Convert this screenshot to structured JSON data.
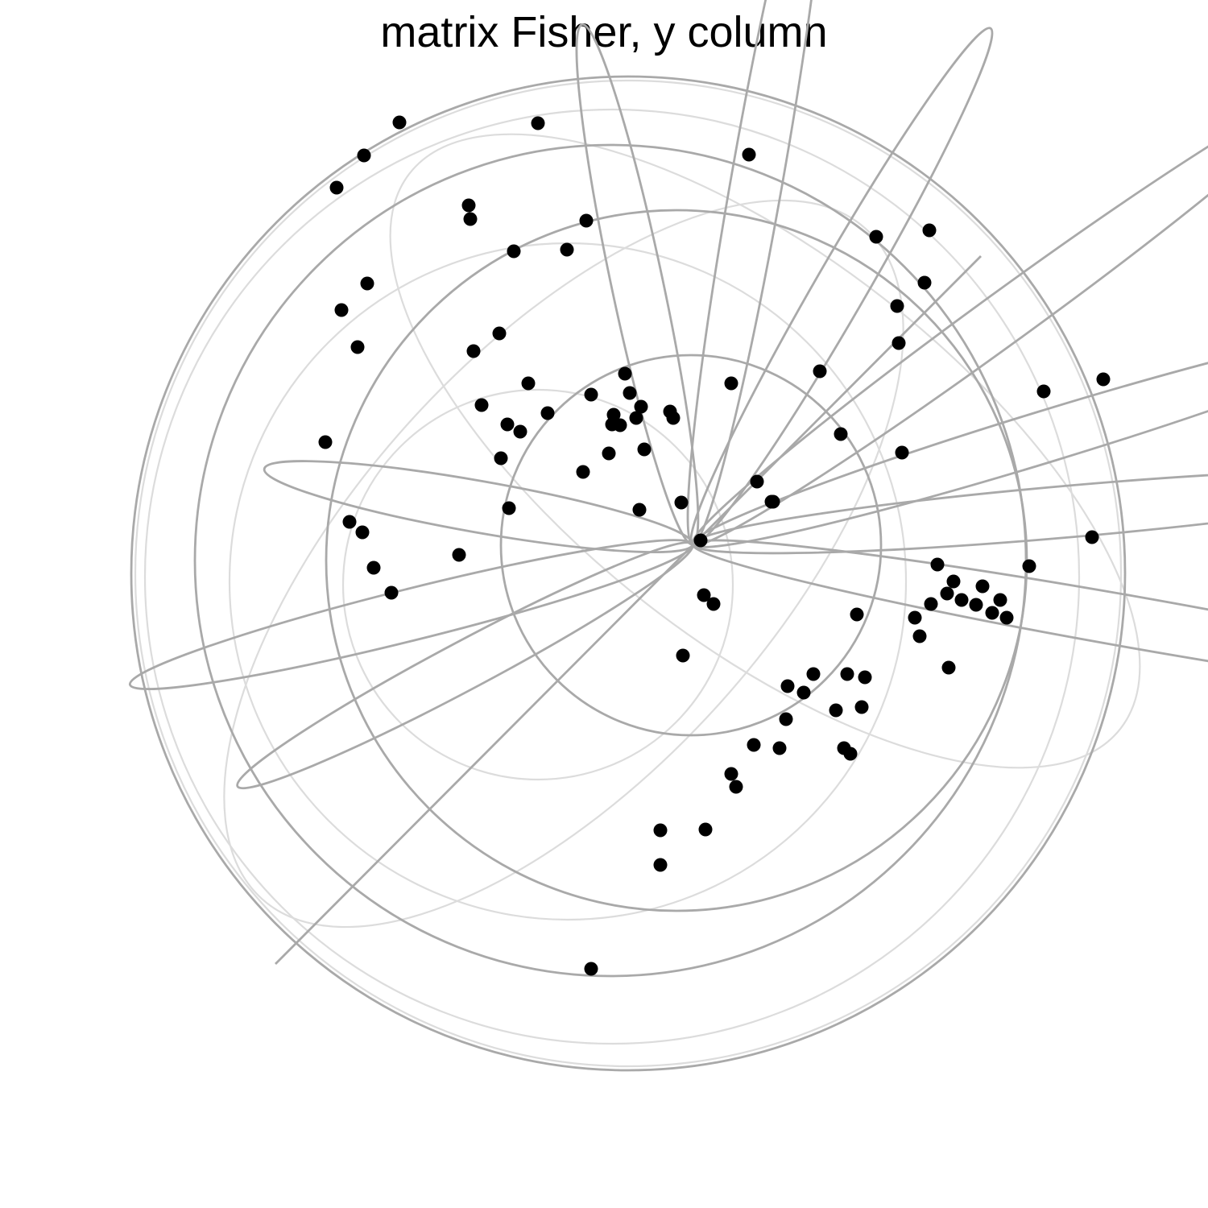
{
  "chart_data": {
    "type": "scatter",
    "title": "matrix Fisher, y column",
    "colors": {
      "points": "#000000",
      "grid": "#a9a9a9",
      "grid_back": "#dcdcdc"
    },
    "grid": true,
    "x": [
      -126,
      -40,
      16,
      -40,
      48,
      54,
      196,
      188,
      210,
      108,
      118,
      150,
      192,
      282,
      276,
      296,
      324,
      316,
      304,
      390,
      372,
      382,
      352,
      334,
      360,
      418,
      496,
      -456,
      -426,
      -410,
      -396,
      -374,
      -290,
      -214,
      -228,
      -136,
      -66,
      -100,
      -90,
      -70,
      -28,
      -126,
      -98,
      -64,
      -60,
      -24,
      -180,
      -230,
      -238,
      -104,
      -14,
      80,
      260,
      184,
      158,
      254,
      288,
      228,
      -84,
      -78,
      48,
      436,
      510,
      256,
      318,
      214,
      178,
      138,
      -204,
      -262,
      -272,
      -240,
      -416,
      -436,
      -404,
      -132,
      -192,
      -364,
      70,
      -408,
      -442,
      -276,
      -278,
      -222,
      -156,
      294,
      100,
      98,
      204,
      14,
      -12,
      116,
      76,
      26,
      10
    ],
    "y": [
      -527,
      -398,
      -354,
      -355,
      -285,
      -301,
      -260,
      -253,
      -202,
      -253,
      -176,
      -161,
      -161,
      -114,
      -91,
      -74,
      -46,
      -61,
      -25,
      -91,
      -85,
      -69,
      -75,
      -69,
      -52,
      -27,
      9,
      127,
      28,
      15,
      -29,
      -60,
      -13,
      140,
      45,
      90,
      43,
      149,
      148,
      157,
      165,
      186,
      161,
      171,
      118,
      157,
      163,
      149,
      107,
      113,
      52,
      78,
      114,
      137,
      215,
      296,
      325,
      382,
      212,
      188,
      200,
      190,
      205,
      250,
      -153,
      -165,
      -206,
      -184,
      200,
      173,
      240,
      262,
      245,
      291,
      324,
      402,
      523,
      524,
      484,
      483,
      443,
      404,
      421,
      364,
      366,
      390,
      53,
      53,
      -87,
      -63,
      -138,
      -217,
      -249,
      -74,
      5
    ]
  }
}
